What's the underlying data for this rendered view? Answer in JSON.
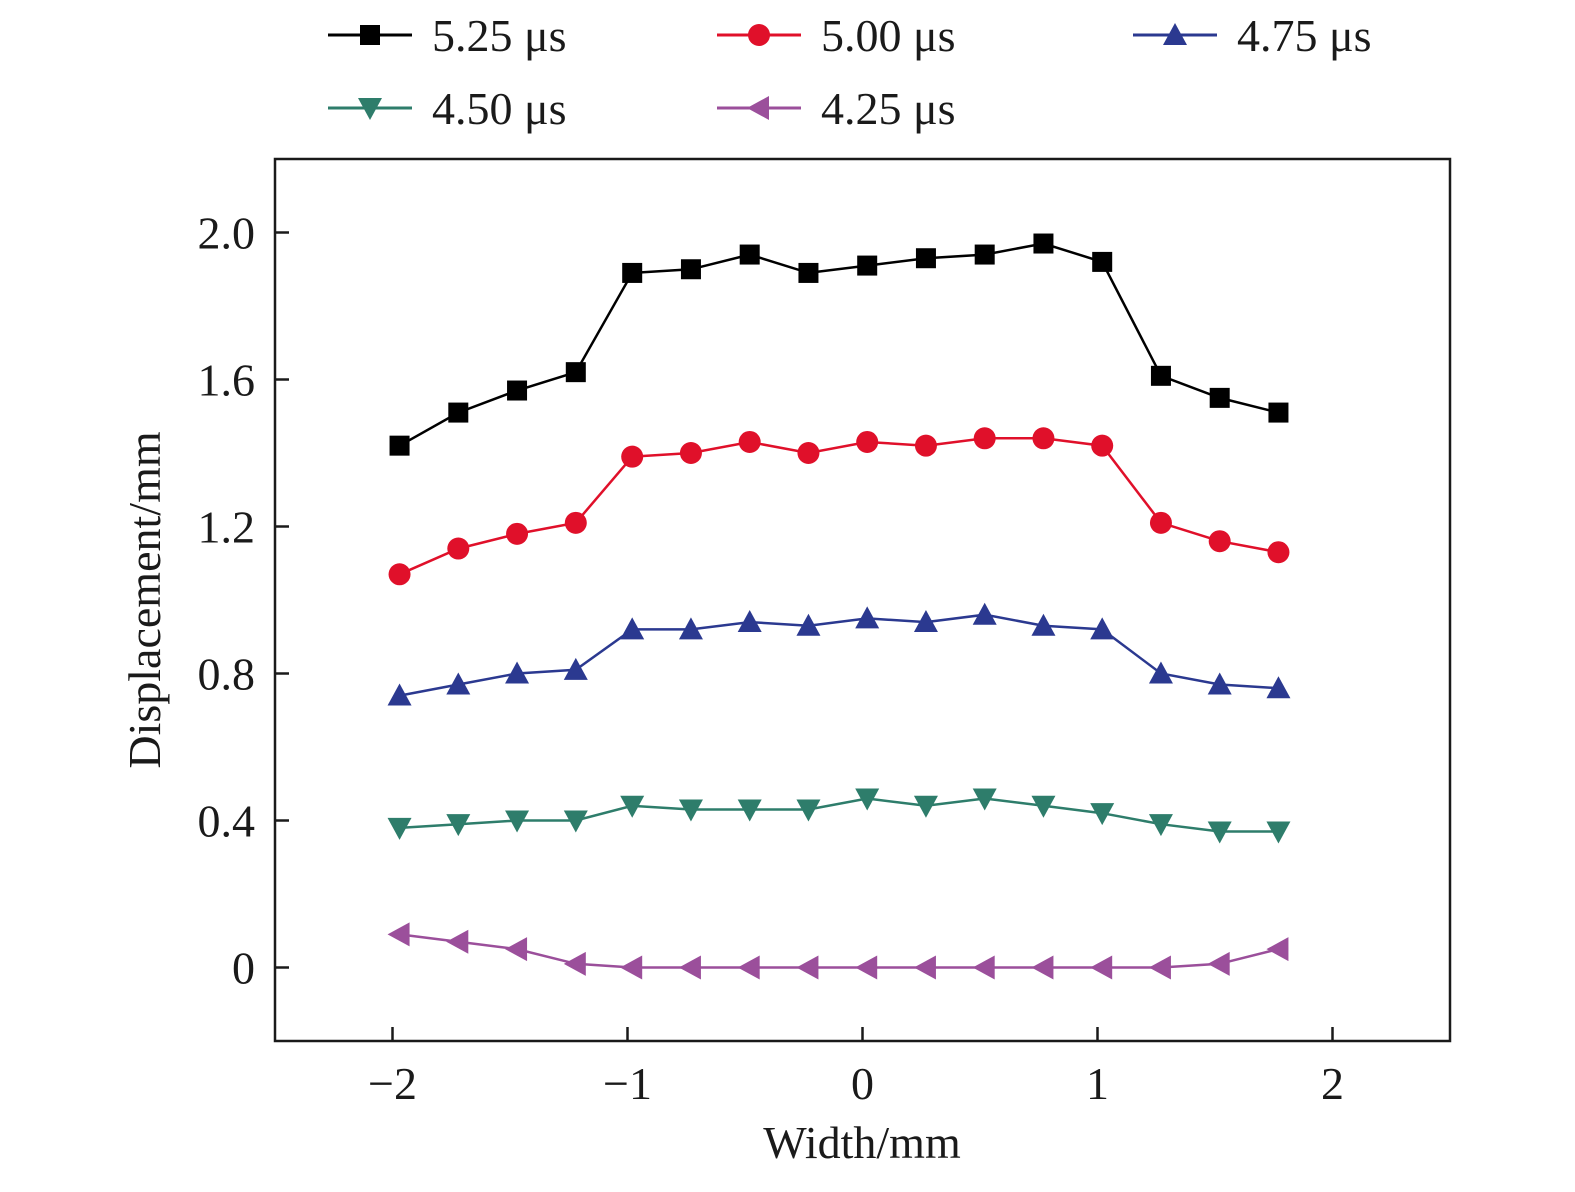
{
  "chart_data": {
    "type": "line",
    "xlabel": "Width/mm",
    "ylabel": "Displacement/mm",
    "xlim": [
      -2.5,
      2.5
    ],
    "ylim": [
      -0.2,
      2.2
    ],
    "xticks": [
      -2,
      -1,
      0,
      1,
      2
    ],
    "xtick_labels": [
      "−2",
      "−1",
      "0",
      "1",
      "2"
    ],
    "yticks": [
      0,
      0.4,
      0.8,
      1.2,
      1.6,
      2.0
    ],
    "ytick_labels": [
      "0",
      "0.4",
      "0.8",
      "1.2",
      "1.6",
      "2.0"
    ],
    "grid": false,
    "legend_position": "top",
    "x": [
      -1.97,
      -1.72,
      -1.47,
      -1.22,
      -0.98,
      -0.73,
      -0.48,
      -0.23,
      0.02,
      0.27,
      0.52,
      0.77,
      1.02,
      1.27,
      1.52,
      1.77
    ],
    "series": [
      {
        "name": "5.25 μs",
        "color": "#000000",
        "marker": "square",
        "values": [
          1.42,
          1.51,
          1.57,
          1.62,
          1.89,
          1.9,
          1.94,
          1.89,
          1.91,
          1.93,
          1.94,
          1.97,
          1.92,
          1.61,
          1.55,
          1.51
        ]
      },
      {
        "name": "5.00 μs",
        "color": "#e0102a",
        "marker": "circle",
        "values": [
          1.07,
          1.14,
          1.18,
          1.21,
          1.39,
          1.4,
          1.43,
          1.4,
          1.43,
          1.42,
          1.44,
          1.44,
          1.42,
          1.21,
          1.16,
          1.13
        ]
      },
      {
        "name": "4.75 μs",
        "color": "#2b3990",
        "marker": "triangle-up",
        "values": [
          0.74,
          0.77,
          0.8,
          0.81,
          0.92,
          0.92,
          0.94,
          0.93,
          0.95,
          0.94,
          0.96,
          0.93,
          0.92,
          0.8,
          0.77,
          0.76
        ]
      },
      {
        "name": "4.50 μs",
        "color": "#2e7d6b",
        "marker": "triangle-down",
        "values": [
          0.38,
          0.39,
          0.4,
          0.4,
          0.44,
          0.43,
          0.43,
          0.43,
          0.46,
          0.44,
          0.46,
          0.44,
          0.42,
          0.39,
          0.37,
          0.37
        ]
      },
      {
        "name": "4.25 μs",
        "color": "#9b4f9b",
        "marker": "triangle-left",
        "values": [
          0.09,
          0.07,
          0.05,
          0.01,
          0.0,
          0.0,
          0.0,
          0.0,
          0.0,
          0.0,
          0.0,
          0.0,
          0.0,
          0.0,
          0.01,
          0.05
        ]
      }
    ]
  }
}
